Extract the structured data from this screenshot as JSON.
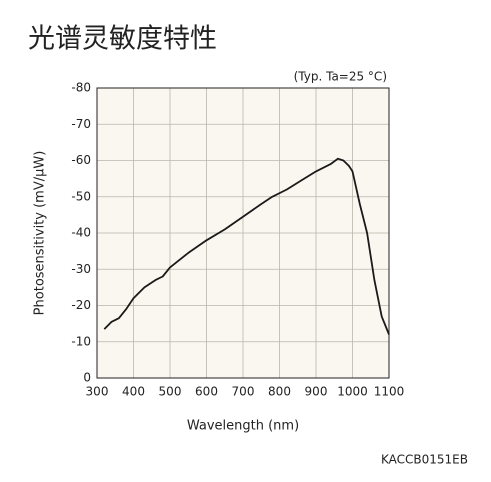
{
  "chart_data": {
    "type": "line",
    "title": "光谱灵敏度特性",
    "annotation": "(Typ. Ta=25 °C)",
    "code": "KACCB0151EB",
    "x_label": "Wavelength (nm)",
    "y_label": "Photosensitivity (mV/μW)",
    "x": [
      320,
      340,
      360,
      380,
      400,
      430,
      460,
      480,
      500,
      550,
      600,
      650,
      700,
      750,
      780,
      820,
      860,
      900,
      940,
      960,
      975,
      990,
      1000,
      1020,
      1040,
      1060,
      1080,
      1100
    ],
    "values": [
      -13.5,
      -15.5,
      -16.5,
      -19,
      -22,
      -25,
      -27,
      -28,
      -30.5,
      -34.5,
      -38,
      -41,
      -44.5,
      -48,
      -50,
      -52,
      -54.5,
      -57,
      -59,
      -60.5,
      -60,
      -58.5,
      -57,
      -48,
      -40,
      -27,
      -17,
      -12
    ],
    "color": "#1a1a1a",
    "xlim": [
      300,
      1100
    ],
    "xticks": [
      300,
      400,
      500,
      600,
      700,
      800,
      900,
      1000,
      1100
    ],
    "ylim": [
      0,
      -80
    ],
    "yticks": [
      0,
      -10,
      -20,
      -30,
      -40,
      -50,
      -60,
      -70,
      -80
    ],
    "grid": true
  }
}
